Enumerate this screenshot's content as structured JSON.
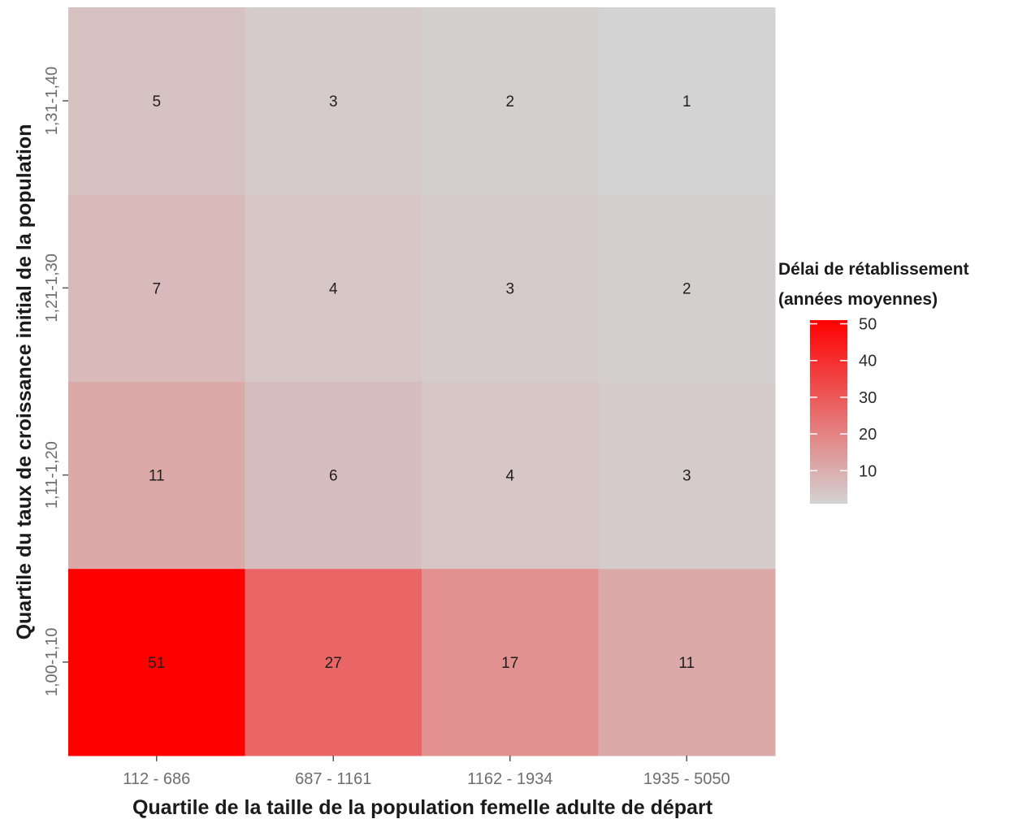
{
  "chart_data": {
    "type": "heatmap",
    "xlabel": "Quartile de la taille de la population femelle adulte de départ",
    "ylabel": "Quartile du taux de croissance initial de la population",
    "x_categories": [
      "112 - 686",
      "687 - 1161",
      "1162 - 1934",
      "1935 - 5050"
    ],
    "y_categories": [
      "1,00-1,10",
      "1,11-1,20",
      "1,21-1,30",
      "1,31-1,40"
    ],
    "values": [
      [
        51,
        27,
        17,
        11
      ],
      [
        11,
        6,
        4,
        3
      ],
      [
        7,
        4,
        3,
        2
      ],
      [
        5,
        3,
        2,
        1
      ]
    ],
    "legend": {
      "title_lines": [
        "Délai de rétablissement",
        "(années moyennes)"
      ],
      "ticks": [
        10,
        20,
        30,
        40,
        50
      ],
      "range": [
        1,
        51
      ],
      "color_low": "#d3d3d3",
      "color_high": "#ff0000",
      "placement": "right"
    }
  }
}
